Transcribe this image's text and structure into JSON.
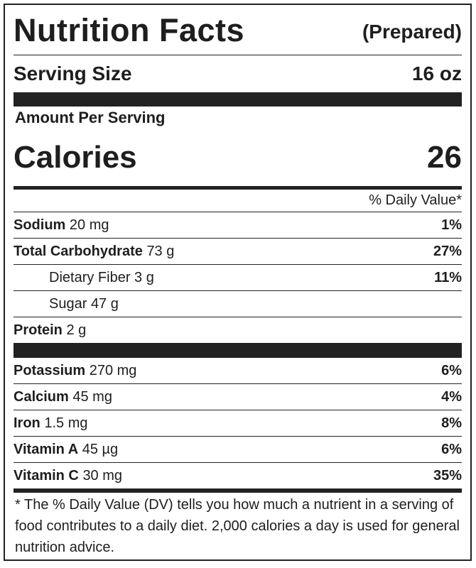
{
  "header": {
    "title": "Nutrition Facts",
    "note": "(Prepared)"
  },
  "serving": {
    "label": "Serving Size",
    "value": "16 oz"
  },
  "amount_label": "Amount Per Serving",
  "calories": {
    "label": "Calories",
    "value": "26"
  },
  "dv_header": "% Daily Value*",
  "groups": [
    [
      {
        "name": "Sodium",
        "amount": "20 mg",
        "dv": "1%",
        "indent": false
      },
      {
        "name": "Total Carbohydrate",
        "amount": "73 g",
        "dv": "27%",
        "indent": false
      },
      {
        "name": "Dietary Fiber",
        "amount": "3 g",
        "dv": "11%",
        "indent": true
      },
      {
        "name": "Sugar",
        "amount": "47 g",
        "dv": null,
        "indent": true
      },
      {
        "name": "Protein",
        "amount": "2 g",
        "dv": null,
        "indent": false
      }
    ],
    [
      {
        "name": "Potassium",
        "amount": "270 mg",
        "dv": "6%",
        "indent": false
      },
      {
        "name": "Calcium",
        "amount": "45 mg",
        "dv": "4%",
        "indent": false
      },
      {
        "name": "Iron",
        "amount": "1.5 mg",
        "dv": "8%",
        "indent": false
      },
      {
        "name": "Vitamin A",
        "amount": "45 µg",
        "dv": "6%",
        "indent": false
      },
      {
        "name": "Vitamin C",
        "amount": "30 mg",
        "dv": "35%",
        "indent": false
      }
    ]
  ],
  "footnote": "* The % Daily Value (DV) tells you how much a nutrient in a serving of food contributes to a daily diet. 2,000 calories a day is used for general nutrition advice."
}
